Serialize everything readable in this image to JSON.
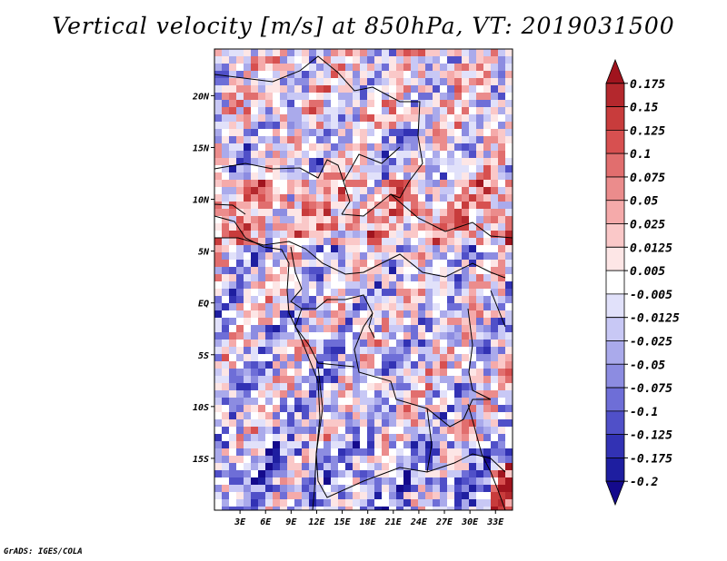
{
  "title": "Vertical velocity [m/s] at 850hPa, VT: 2019031500",
  "footer": "GrADS: IGES/COLA",
  "map": {
    "lon_range": [
      0,
      35
    ],
    "lat_range": [
      -20,
      24.5
    ],
    "lat_ticks": [
      {
        "value": 20,
        "label": "20N"
      },
      {
        "value": 15,
        "label": "15N"
      },
      {
        "value": 10,
        "label": "10N"
      },
      {
        "value": 5,
        "label": "5N"
      },
      {
        "value": 0,
        "label": "EQ"
      },
      {
        "value": -5,
        "label": "5S"
      },
      {
        "value": -10,
        "label": "10S"
      },
      {
        "value": -15,
        "label": "15S"
      }
    ],
    "lon_ticks": [
      {
        "value": 3,
        "label": "3E"
      },
      {
        "value": 6,
        "label": "6E"
      },
      {
        "value": 9,
        "label": "9E"
      },
      {
        "value": 12,
        "label": "12E"
      },
      {
        "value": 15,
        "label": "15E"
      },
      {
        "value": 18,
        "label": "18E"
      },
      {
        "value": 21,
        "label": "21E"
      },
      {
        "value": 24,
        "label": "24E"
      },
      {
        "value": 27,
        "label": "27E"
      },
      {
        "value": 30,
        "label": "30E"
      },
      {
        "value": 33,
        "label": "33E"
      }
    ]
  },
  "colorbar": {
    "labels": [
      "0.175",
      "0.15",
      "0.125",
      "0.1",
      "0.075",
      "0.05",
      "0.025",
      "0.0125",
      "0.005",
      "-0.005",
      "-0.0125",
      "-0.025",
      "-0.05",
      "-0.075",
      "-0.1",
      "-0.125",
      "-0.175",
      "-0.2"
    ],
    "colors": [
      "#a0141e",
      "#b4282d",
      "#c83c3c",
      "#d75050",
      "#e16e6e",
      "#eb8c8c",
      "#f5aaaa",
      "#fac8c8",
      "#fde6e6",
      "#ffffff",
      "#e1e1fa",
      "#c8c8f5",
      "#aaaaeb",
      "#8c8ce1",
      "#6e6ed7",
      "#5050c8",
      "#3232b4",
      "#1e1ea0",
      "#140a8c"
    ]
  }
}
